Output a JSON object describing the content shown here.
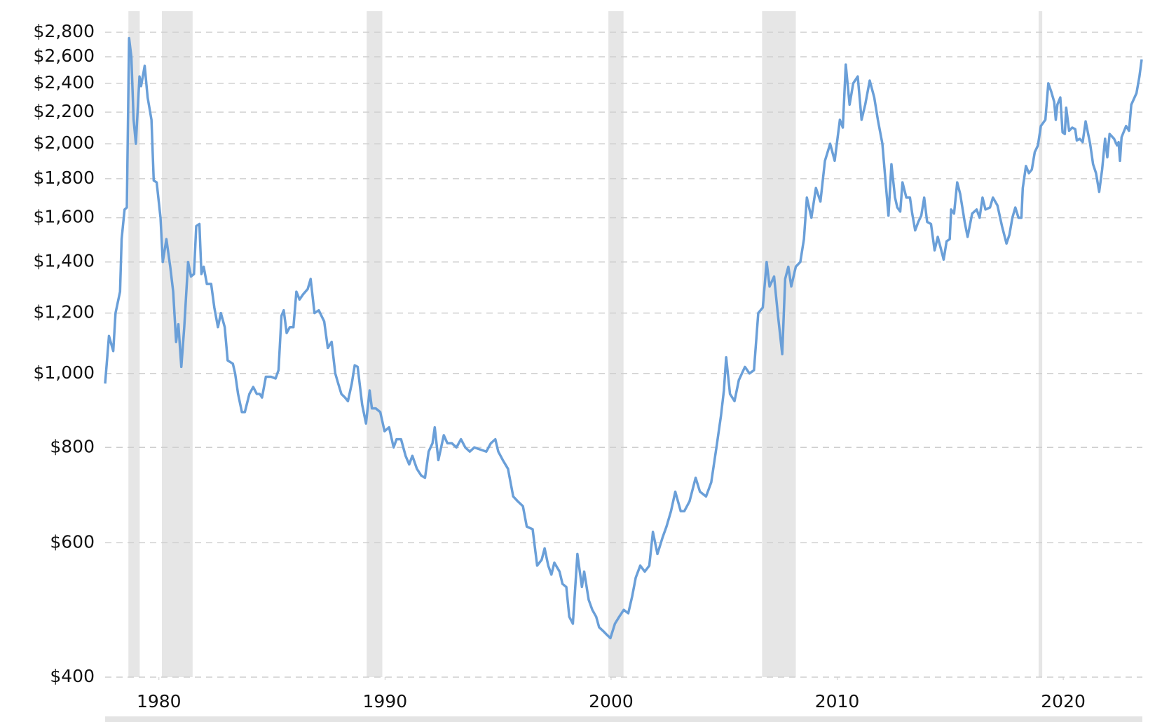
{
  "chart_data": {
    "type": "line",
    "log_scale": true,
    "grid": true,
    "color": "#6a9fd8",
    "shade_color": "#e6e6e6",
    "xlim": [
      1977.62,
      2023.5
    ],
    "ylim": [
      400,
      2800
    ],
    "xticks": [
      1980,
      1990,
      2000,
      2010,
      2020
    ],
    "yticks": [
      {
        "value": 400,
        "label": "$400"
      },
      {
        "value": 600,
        "label": "$600"
      },
      {
        "value": 800,
        "label": "$800"
      },
      {
        "value": 1000,
        "label": "$1,000"
      },
      {
        "value": 1200,
        "label": "$1,200"
      },
      {
        "value": 1400,
        "label": "$1,400"
      },
      {
        "value": 1600,
        "label": "$1,600"
      },
      {
        "value": 1800,
        "label": "$1,800"
      },
      {
        "value": 2000,
        "label": "$2,000"
      },
      {
        "value": 2200,
        "label": "$2,200"
      },
      {
        "value": 2400,
        "label": "$2,400"
      },
      {
        "value": 2600,
        "label": "$2,600"
      },
      {
        "value": 2800,
        "label": "$2,800"
      }
    ],
    "shaded_regions": [
      [
        1978.65,
        1979.15
      ],
      [
        1980.13,
        1981.49
      ],
      [
        1989.19,
        1989.88
      ],
      [
        1999.88,
        2000.55
      ],
      [
        2006.68,
        2008.17
      ],
      [
        2018.91,
        2019.07
      ]
    ],
    "x": [
      1977.62,
      1977.79,
      1977.98,
      1978.08,
      1978.28,
      1978.35,
      1978.48,
      1978.58,
      1978.68,
      1978.78,
      1978.88,
      1978.98,
      1979.14,
      1979.21,
      1979.37,
      1979.5,
      1979.67,
      1979.77,
      1979.9,
      1980.07,
      1980.17,
      1980.33,
      1980.5,
      1980.63,
      1980.76,
      1980.86,
      1980.99,
      1981.12,
      1981.29,
      1981.42,
      1981.55,
      1981.65,
      1981.79,
      1981.88,
      1981.98,
      1982.12,
      1982.31,
      1982.45,
      1982.61,
      1982.74,
      1982.91,
      1983.04,
      1983.27,
      1983.37,
      1983.5,
      1983.67,
      1983.8,
      1984.0,
      1984.17,
      1984.33,
      1984.46,
      1984.56,
      1984.73,
      1984.96,
      1985.16,
      1985.29,
      1985.42,
      1985.52,
      1985.65,
      1985.79,
      1985.95,
      1986.08,
      1986.22,
      1986.38,
      1986.58,
      1986.71,
      1986.88,
      1987.07,
      1987.31,
      1987.47,
      1987.64,
      1987.8,
      1987.93,
      1988.07,
      1988.23,
      1988.36,
      1988.53,
      1988.66,
      1988.79,
      1988.99,
      1989.16,
      1989.32,
      1989.42,
      1989.59,
      1989.79,
      1989.98,
      1990.18,
      1990.38,
      1990.51,
      1990.71,
      1990.91,
      1991.07,
      1991.21,
      1991.41,
      1991.6,
      1991.77,
      1991.93,
      1992.1,
      1992.2,
      1992.36,
      1992.6,
      1992.76,
      1992.96,
      1993.16,
      1993.36,
      1993.55,
      1993.75,
      1993.95,
      1994.21,
      1994.48,
      1994.68,
      1994.88,
      1995.01,
      1995.21,
      1995.44,
      1995.67,
      1995.87,
      1996.1,
      1996.27,
      1996.53,
      1996.73,
      1996.93,
      1997.06,
      1997.22,
      1997.36,
      1997.49,
      1997.72,
      1997.85,
      1998.02,
      1998.15,
      1998.31,
      1998.51,
      1998.71,
      1998.81,
      1999.01,
      1999.17,
      1999.34,
      1999.47,
      1999.64,
      1999.8,
      1999.97,
      2000.17,
      2000.36,
      2000.56,
      2000.76,
      2000.93,
      2001.09,
      2001.29,
      2001.49,
      2001.69,
      2001.85,
      2002.05,
      2002.28,
      2002.45,
      2002.65,
      2002.84,
      2003.08,
      2003.24,
      2003.47,
      2003.74,
      2003.93,
      2004.2,
      2004.43,
      2004.66,
      2004.86,
      2004.99,
      2005.09,
      2005.26,
      2005.46,
      2005.65,
      2005.92,
      2006.12,
      2006.32,
      2006.51,
      2006.71,
      2006.88,
      2007.01,
      2007.21,
      2007.37,
      2007.57,
      2007.7,
      2007.84,
      2007.97,
      2008.17,
      2008.37,
      2008.53,
      2008.66,
      2008.86,
      2009.06,
      2009.26,
      2009.46,
      2009.69,
      2009.89,
      2010.12,
      2010.25,
      2010.38,
      2010.55,
      2010.71,
      2010.91,
      2011.08,
      2011.24,
      2011.44,
      2011.64,
      2011.8,
      2012.0,
      2012.13,
      2012.27,
      2012.4,
      2012.56,
      2012.66,
      2012.79,
      2012.89,
      2013.06,
      2013.22,
      2013.32,
      2013.45,
      2013.59,
      2013.72,
      2013.85,
      2013.98,
      2014.15,
      2014.31,
      2014.45,
      2014.58,
      2014.71,
      2014.84,
      2014.98,
      2015.04,
      2015.17,
      2015.31,
      2015.44,
      2015.64,
      2015.77,
      2015.97,
      2016.17,
      2016.3,
      2016.43,
      2016.56,
      2016.76,
      2016.89,
      2017.09,
      2017.29,
      2017.49,
      2017.62,
      2017.75,
      2017.88,
      2018.02,
      2018.15,
      2018.21,
      2018.35,
      2018.48,
      2018.61,
      2018.74,
      2018.88,
      2019.01,
      2019.21,
      2019.34,
      2019.47,
      2019.6,
      2019.67,
      2019.74,
      2019.87,
      2019.97,
      2020.07,
      2020.13,
      2020.26,
      2020.4,
      2020.53,
      2020.6,
      2020.73,
      2020.86,
      2020.99,
      2021.19,
      2021.32,
      2021.45,
      2021.59,
      2021.72,
      2021.85,
      2021.95,
      2022.05,
      2022.25,
      2022.38,
      2022.45,
      2022.51,
      2022.58,
      2022.78,
      2022.91,
      2023.01,
      2023.24,
      2023.37,
      2023.47
    ],
    "values": [
      970,
      1120,
      1070,
      1200,
      1280,
      1500,
      1640,
      1650,
      2750,
      2600,
      2150,
      2000,
      2450,
      2380,
      2530,
      2300,
      2150,
      1790,
      1780,
      1600,
      1400,
      1500,
      1380,
      1280,
      1100,
      1160,
      1020,
      1150,
      1400,
      1340,
      1350,
      1560,
      1570,
      1350,
      1380,
      1310,
      1310,
      1220,
      1150,
      1200,
      1150,
      1040,
      1030,
      1000,
      940,
      890,
      890,
      940,
      960,
      940,
      940,
      930,
      990,
      990,
      985,
      1010,
      1190,
      1210,
      1130,
      1150,
      1150,
      1280,
      1250,
      1270,
      1290,
      1330,
      1200,
      1210,
      1170,
      1080,
      1100,
      1000,
      970,
      940,
      930,
      920,
      970,
      1025,
      1020,
      910,
      860,
      950,
      900,
      900,
      890,
      840,
      850,
      800,
      820,
      820,
      780,
      760,
      780,
      750,
      735,
      730,
      790,
      810,
      850,
      770,
      830,
      810,
      810,
      800,
      820,
      800,
      790,
      800,
      795,
      790,
      810,
      820,
      790,
      770,
      750,
      690,
      680,
      670,
      630,
      625,
      560,
      570,
      590,
      560,
      545,
      565,
      550,
      530,
      525,
      480,
      470,
      580,
      525,
      550,
      505,
      490,
      480,
      465,
      460,
      455,
      450,
      470,
      480,
      490,
      485,
      510,
      540,
      560,
      550,
      560,
      620,
      580,
      610,
      630,
      660,
      700,
      660,
      660,
      680,
      730,
      700,
      690,
      720,
      800,
      880,
      950,
      1050,
      940,
      920,
      980,
      1020,
      1000,
      1010,
      1200,
      1220,
      1400,
      1300,
      1340,
      1200,
      1060,
      1330,
      1380,
      1300,
      1380,
      1400,
      1500,
      1700,
      1600,
      1750,
      1680,
      1900,
      2000,
      1900,
      2150,
      2100,
      2540,
      2250,
      2400,
      2450,
      2150,
      2250,
      2420,
      2300,
      2150,
      2000,
      1800,
      1610,
      1880,
      1700,
      1650,
      1630,
      1780,
      1700,
      1700,
      1620,
      1540,
      1580,
      1610,
      1700,
      1580,
      1570,
      1450,
      1510,
      1460,
      1410,
      1490,
      1500,
      1640,
      1620,
      1780,
      1720,
      1580,
      1510,
      1620,
      1640,
      1600,
      1700,
      1640,
      1650,
      1700,
      1660,
      1560,
      1480,
      1520,
      1600,
      1650,
      1600,
      1600,
      1750,
      1870,
      1830,
      1850,
      1950,
      1990,
      2110,
      2150,
      2400,
      2340,
      2270,
      2150,
      2250,
      2300,
      2070,
      2060,
      2230,
      2080,
      2100,
      2090,
      2020,
      2030,
      2010,
      2140,
      2000,
      1880,
      1830,
      1730,
      1850,
      2030,
      1920,
      2060,
      2030,
      1990,
      2010,
      1900,
      2040,
      2110,
      2080,
      2250,
      2330,
      2450,
      2580
    ]
  }
}
